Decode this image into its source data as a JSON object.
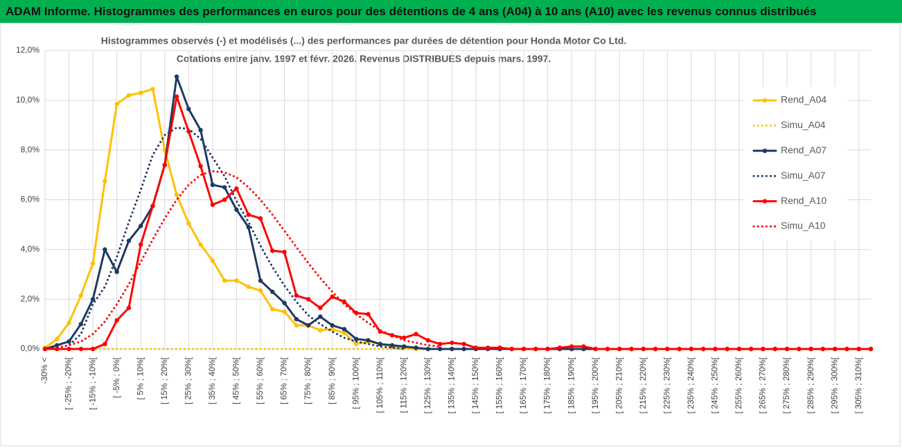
{
  "header": {
    "title": "ADAM Informe. Histogrammes des performances en euros pour des détentions de 4 ans (A04) à 10 ans (A10) avec les revenus connus distribués"
  },
  "chart_data": {
    "type": "line",
    "title": [
      "Histogrammes observés (-) et modélisés (...) des performances par durées de détention pour Honda Motor Co Ltd.",
      "Cotations entre janv. 1997 et févr. 2026. Revenus DISTRIBUES depuis mars. 1997."
    ],
    "categories": [
      "-30% <",
      null,
      "[ -25% ; -20%[",
      null,
      "[ -15% ; -10%[",
      null,
      "[ -5% ; 0%[",
      null,
      "[ 5% ; 10%[",
      null,
      "[ 15% ; 20%[",
      null,
      "[ 25% ; 30%[",
      null,
      "[ 35% ; 40%[",
      null,
      "[ 45% ; 50%[",
      null,
      "[ 55% ; 60%[",
      null,
      "[ 65% ; 70%[",
      null,
      "[ 75% ; 80%[",
      null,
      "[ 85% ; 90%[",
      null,
      "[ 95% ; 100%[",
      null,
      "[ 105% ; 110%[",
      null,
      "[ 115% ; 120%[",
      null,
      "[ 125% ; 130%[",
      null,
      "[ 135% ; 140%[",
      null,
      "[ 145% ; 150%[",
      null,
      "[ 155% ; 160%[",
      null,
      "[ 165% ; 170%[",
      null,
      "[ 175% ; 180%[",
      null,
      "[ 185% ; 190%[",
      null,
      "[ 195% ; 200%[",
      null,
      "[ 205% ; 210%[",
      null,
      "[ 215% ; 220%[",
      null,
      "[ 225% ; 230%[",
      null,
      "[ 235% ; 240%[",
      null,
      "[ 245% ; 250%[",
      null,
      "[ 255% ; 260%[",
      null,
      "[ 265% ; 270%[",
      null,
      "[ 275% ; 280%[",
      null,
      "[ 285% ; 290%[",
      null,
      "[ 295% ; 300%[",
      null,
      "[ 305% ; 310%[",
      null
    ],
    "series": [
      {
        "name": "Rend_A04",
        "color": "#ffc000",
        "style": "solid",
        "markers": true,
        "values": [
          0.05,
          0.4,
          1.05,
          2.15,
          3.45,
          6.75,
          9.85,
          10.2,
          10.3,
          10.45,
          8.0,
          6.2,
          5.05,
          4.2,
          3.55,
          2.75,
          2.75,
          2.5,
          2.35,
          1.6,
          1.5,
          0.95,
          0.95,
          0.75,
          0.8,
          0.65,
          0.2,
          0.3,
          0.2,
          0.1,
          0.05,
          0,
          0,
          0,
          0,
          0,
          0,
          0,
          0,
          0,
          0,
          0,
          0,
          0,
          0,
          0,
          0,
          0,
          0,
          0,
          0,
          0,
          0,
          0,
          0,
          0,
          0,
          0,
          0,
          0,
          0,
          0,
          0,
          0,
          0,
          0,
          0,
          0,
          0,
          0
        ]
      },
      {
        "name": "Simu_A04",
        "color": "#ffc000",
        "style": "dotted",
        "markers": false,
        "values": [
          0,
          0,
          0,
          0,
          0,
          0,
          0,
          0,
          0,
          0,
          0,
          0,
          0,
          0,
          0,
          0,
          0,
          0,
          0,
          0,
          0,
          0,
          0,
          0,
          0,
          0,
          0,
          0,
          0,
          0,
          0,
          0,
          0,
          null,
          null,
          null,
          null,
          null,
          null,
          null,
          null,
          null,
          null,
          null,
          null,
          null,
          null,
          null,
          null,
          null,
          null,
          null,
          null,
          null,
          null,
          null,
          null,
          null,
          null,
          null,
          null,
          null,
          null,
          null,
          null,
          null,
          null,
          null,
          null,
          null
        ]
      },
      {
        "name": "Rend_A07",
        "color": "#1f3864",
        "style": "solid",
        "markers": true,
        "values": [
          0,
          0.15,
          0.3,
          1.0,
          2.0,
          4.0,
          3.1,
          4.35,
          4.95,
          5.75,
          7.4,
          10.95,
          9.65,
          8.8,
          6.6,
          6.5,
          5.6,
          4.9,
          2.75,
          2.3,
          1.85,
          1.2,
          0.95,
          1.3,
          0.95,
          0.8,
          0.4,
          0.35,
          0.2,
          0.15,
          0.1,
          0.05,
          0,
          0,
          0,
          0,
          0,
          0,
          0,
          0,
          0,
          0,
          0,
          0,
          0,
          0,
          0,
          0,
          0,
          0,
          0,
          0,
          0,
          0,
          0,
          0,
          0,
          0,
          0,
          0,
          0,
          0,
          0,
          0,
          0,
          0,
          0,
          0,
          0,
          0
        ]
      },
      {
        "name": "Simu_A07",
        "color": "#1f3864",
        "style": "dotted",
        "markers": false,
        "values": [
          0,
          0.05,
          0.15,
          0.6,
          1.8,
          2.5,
          3.7,
          5.1,
          6.4,
          7.8,
          8.6,
          8.9,
          8.85,
          8.45,
          7.7,
          6.95,
          5.95,
          5.1,
          4.15,
          3.3,
          2.55,
          1.9,
          1.35,
          1.0,
          0.7,
          0.45,
          0.3,
          0.2,
          0.1,
          0.05,
          0,
          null,
          null,
          null,
          null,
          null,
          null,
          null,
          null,
          null,
          null,
          null,
          null,
          null,
          null,
          null,
          null,
          null,
          null,
          null,
          null,
          null,
          null,
          null,
          null,
          null,
          null,
          null,
          null,
          null,
          null,
          null,
          null,
          null,
          null,
          null,
          null,
          null,
          null,
          null
        ]
      },
      {
        "name": "Rend_A10",
        "color": "#ff0000",
        "style": "solid",
        "markers": true,
        "values": [
          0,
          0,
          0,
          0,
          0,
          0.2,
          1.15,
          1.65,
          4.2,
          5.75,
          7.4,
          10.15,
          8.75,
          7.35,
          5.8,
          6.0,
          6.45,
          5.4,
          5.25,
          3.95,
          3.9,
          2.15,
          2.0,
          1.65,
          2.1,
          1.9,
          1.45,
          1.4,
          0.7,
          0.55,
          0.45,
          0.6,
          0.35,
          0.2,
          0.25,
          0.2,
          0.05,
          0.05,
          0.05,
          0,
          0,
          0,
          0,
          0.05,
          0.1,
          0.1,
          0,
          0,
          0,
          0,
          0,
          0,
          0,
          0,
          0,
          0,
          0,
          0,
          0,
          0,
          0,
          0,
          0,
          0,
          0,
          0,
          0,
          0,
          0,
          0
        ]
      },
      {
        "name": "Simu_A10",
        "color": "#ff0000",
        "style": "dotted",
        "markers": false,
        "values": [
          0,
          0.05,
          0.15,
          0.3,
          0.6,
          1.1,
          1.8,
          2.6,
          3.5,
          4.4,
          5.25,
          6.0,
          6.6,
          7.0,
          7.15,
          7.1,
          6.9,
          6.5,
          6.0,
          5.4,
          4.75,
          4.1,
          3.45,
          2.85,
          2.3,
          1.8,
          1.4,
          1.05,
          0.75,
          0.55,
          0.35,
          0.25,
          0.15,
          0.1,
          null,
          null,
          null,
          null,
          null,
          null,
          null,
          null,
          null,
          null,
          null,
          null,
          null,
          null,
          null,
          null,
          null,
          null,
          null,
          null,
          null,
          null,
          null,
          null,
          null,
          null,
          null,
          null,
          null,
          null,
          null,
          null,
          null,
          null,
          null,
          null
        ]
      }
    ],
    "ylim": [
      0,
      12
    ],
    "yticks": [
      {
        "value": 0,
        "label": "0,0%"
      },
      {
        "value": 2,
        "label": "2,0%"
      },
      {
        "value": 4,
        "label": "4,0%"
      },
      {
        "value": 6,
        "label": "6,0%"
      },
      {
        "value": 8,
        "label": "8,0%"
      },
      {
        "value": 10,
        "label": "10,0%"
      },
      {
        "value": 12,
        "label": "12,0%"
      }
    ],
    "grid": true,
    "legend": "right"
  }
}
